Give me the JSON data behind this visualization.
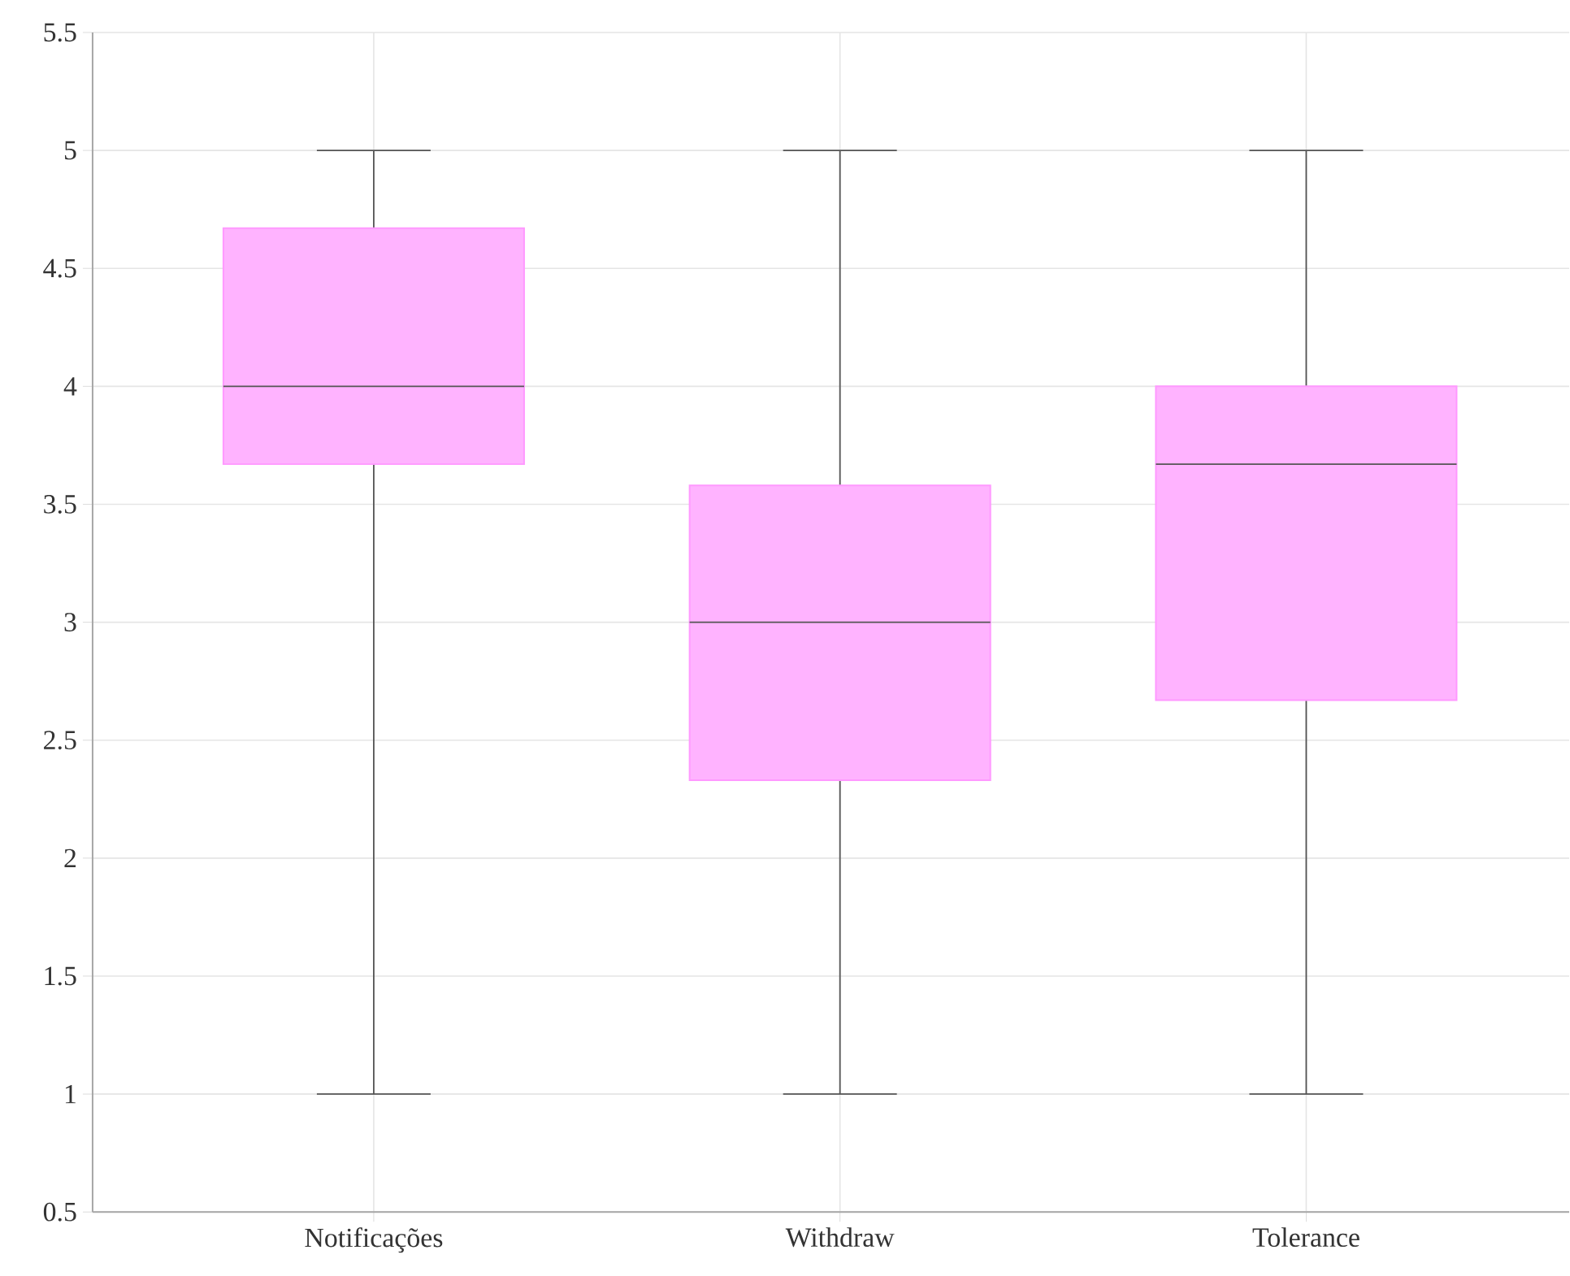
{
  "chart_data": {
    "type": "box",
    "categories": [
      "Notificações",
      "Withdraw",
      "Tolerance"
    ],
    "boxes": [
      {
        "low": 1,
        "q1": 3.67,
        "median": 4,
        "q3": 4.67,
        "high": 5
      },
      {
        "low": 1,
        "q1": 2.33,
        "median": 3,
        "q3": 3.58,
        "high": 5
      },
      {
        "low": 1,
        "q1": 2.67,
        "median": 3.67,
        "q3": 4,
        "high": 5
      }
    ],
    "color": "#ffb3ff",
    "ylim": [
      0.5,
      5.5
    ],
    "yticks": [
      0.5,
      1,
      1.5,
      2,
      2.5,
      3,
      3.5,
      4,
      4.5,
      5,
      5.5
    ],
    "grid": true
  }
}
